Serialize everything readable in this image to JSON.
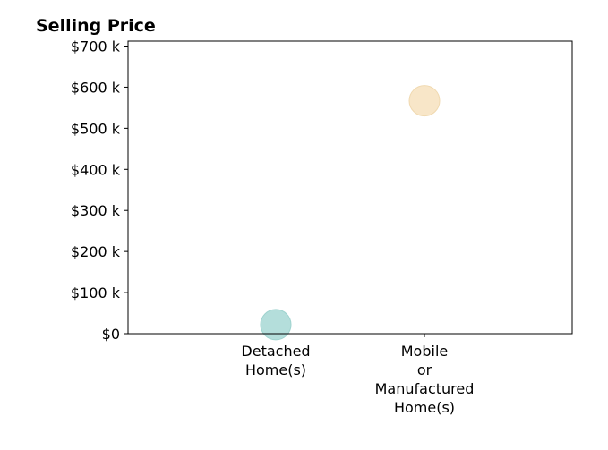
{
  "chart_data": {
    "type": "scatter",
    "title": "Selling Price",
    "xlabel": "",
    "ylabel": "",
    "categories": [
      "Detached\nHome(s)",
      "Mobile\nor\nManufactured\nHome(s)"
    ],
    "values": [
      22000,
      567000
    ],
    "ylim": [
      0,
      712000
    ],
    "yticks": [
      0,
      100000,
      200000,
      300000,
      400000,
      500000,
      600000,
      700000
    ],
    "ytick_labels": [
      "$0",
      "$100 k",
      "$200 k",
      "$300 k",
      "$400 k",
      "$500 k",
      "$600 k",
      "$700 k"
    ],
    "point_colors": [
      "#b4dedb",
      "#f8e6c8"
    ],
    "point_stroke_colors": [
      "#9fd3cf",
      "#f0d9b0"
    ],
    "grid": false,
    "legend": "none"
  }
}
